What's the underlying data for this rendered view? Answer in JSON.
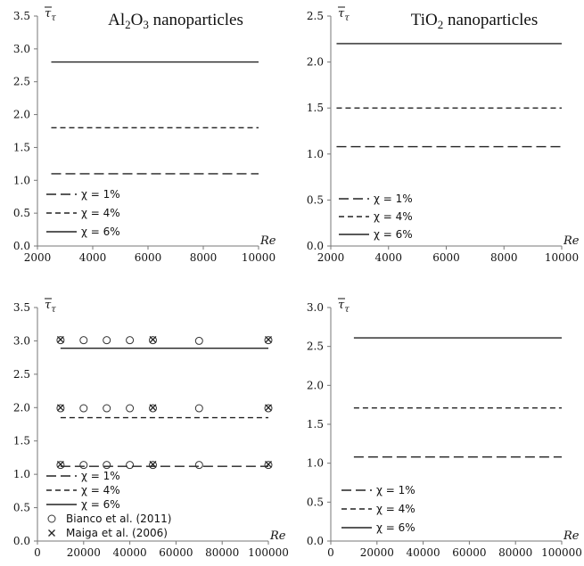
{
  "chart_data": [
    {
      "type": "line",
      "title": {
        "pre": "Al",
        "sub1": "2",
        "mid": "O",
        "sub2": "3",
        "post": " nanoparticles"
      },
      "ylabel": "τ̄τ",
      "xlabel": "Re",
      "xlim": [
        2000,
        10000
      ],
      "ylim": [
        0,
        3.5
      ],
      "xticks": [
        "2000",
        "4000",
        "6000",
        "8000",
        "10000"
      ],
      "yticks": [
        "0.0",
        "0.5",
        "1.0",
        "1.5",
        "2.0",
        "2.5",
        "3.0",
        "3.5"
      ],
      "xtick_values": [
        2000,
        4000,
        6000,
        8000,
        10000
      ],
      "ytick_values": [
        0,
        0.5,
        1.0,
        1.5,
        2.0,
        2.5,
        3.0,
        3.5
      ],
      "series": [
        {
          "name": "χ = 1%",
          "style": "longdash",
          "x": [
            2500,
            10000
          ],
          "y": [
            1.1,
            1.1
          ]
        },
        {
          "name": "χ = 4%",
          "style": "shortdash",
          "x": [
            2500,
            10000
          ],
          "y": [
            1.8,
            1.8
          ]
        },
        {
          "name": "χ = 6%",
          "style": "solid",
          "x": [
            2500,
            10000
          ],
          "y": [
            2.8,
            2.8
          ]
        }
      ],
      "markers": [],
      "legend_position": "bottom-left"
    },
    {
      "type": "line",
      "title": {
        "pre": "TiO",
        "sub1": "2",
        "mid": "",
        "sub2": "",
        "post": " nanoparticles"
      },
      "ylabel": "τ̄τ",
      "xlabel": "Re",
      "xlim": [
        2000,
        10000
      ],
      "ylim": [
        0,
        2.5
      ],
      "xticks": [
        "2000",
        "4000",
        "6000",
        "8000",
        "10000"
      ],
      "yticks": [
        "0.0",
        "0.5",
        "1.0",
        "1.5",
        "2.0",
        "2.5"
      ],
      "xtick_values": [
        2000,
        4000,
        6000,
        8000,
        10000
      ],
      "ytick_values": [
        0,
        0.5,
        1.0,
        1.5,
        2.0,
        2.5
      ],
      "series": [
        {
          "name": "χ = 1%",
          "style": "longdash",
          "x": [
            2200,
            10000
          ],
          "y": [
            1.08,
            1.08
          ]
        },
        {
          "name": "χ = 4%",
          "style": "shortdash",
          "x": [
            2200,
            10000
          ],
          "y": [
            1.5,
            1.5
          ]
        },
        {
          "name": "χ = 6%",
          "style": "solid",
          "x": [
            2200,
            10000
          ],
          "y": [
            2.2,
            2.2
          ]
        }
      ],
      "markers": [],
      "legend_position": "bottom-left"
    },
    {
      "type": "line",
      "title": null,
      "ylabel": "τ̄τ",
      "xlabel": "Re",
      "xlim": [
        0,
        100000
      ],
      "ylim": [
        0,
        3.5
      ],
      "xticks": [
        "0",
        "20000",
        "40000",
        "60000",
        "80000",
        "100000"
      ],
      "yticks": [
        "0.0",
        "0.5",
        "1.0",
        "1.5",
        "2.0",
        "2.5",
        "3.0",
        "3.5"
      ],
      "xtick_values": [
        0,
        20000,
        40000,
        60000,
        80000,
        100000
      ],
      "ytick_values": [
        0,
        0.5,
        1.0,
        1.5,
        2.0,
        2.5,
        3.0,
        3.5
      ],
      "series": [
        {
          "name": "χ = 1%",
          "style": "longdash",
          "x": [
            10000,
            100000
          ],
          "y": [
            1.12,
            1.12
          ]
        },
        {
          "name": "χ = 4%",
          "style": "shortdash",
          "x": [
            10000,
            100000
          ],
          "y": [
            1.85,
            1.85
          ]
        },
        {
          "name": "χ = 6%",
          "style": "solid",
          "x": [
            10000,
            100000
          ],
          "y": [
            2.89,
            2.89
          ]
        }
      ],
      "markers": [
        {
          "name": "Bianco et al. (2011)",
          "marker": "circle",
          "x": [
            10000,
            20000,
            30000,
            40000,
            50000,
            70000,
            100000,
            10000,
            20000,
            30000,
            40000,
            50000,
            70000,
            100000,
            10000,
            20000,
            30000,
            40000,
            50000,
            70000,
            100000
          ],
          "y": [
            1.14,
            1.14,
            1.14,
            1.14,
            1.14,
            1.14,
            1.14,
            1.99,
            1.99,
            1.99,
            1.99,
            1.99,
            1.99,
            1.99,
            3.01,
            3.01,
            3.01,
            3.01,
            3.01,
            3.0,
            3.01
          ]
        },
        {
          "name": "Maiga et al. (2006)",
          "marker": "cross",
          "x": [
            10000,
            50000,
            100000,
            10000,
            50000,
            100000,
            10000,
            50000,
            100000
          ],
          "y": [
            1.15,
            1.15,
            1.15,
            2.0,
            2.0,
            2.0,
            3.02,
            3.02,
            3.02
          ]
        }
      ],
      "legend_position": "bottom-left"
    },
    {
      "type": "line",
      "title": null,
      "ylabel": "τ̄τ",
      "xlabel": "Re",
      "xlim": [
        0,
        100000
      ],
      "ylim": [
        0,
        3.0
      ],
      "xticks": [
        "0",
        "20000",
        "40000",
        "60000",
        "80000",
        "100000"
      ],
      "yticks": [
        "0.0",
        "0.5",
        "1.0",
        "1.5",
        "2.0",
        "2.5",
        "3.0"
      ],
      "xtick_values": [
        0,
        20000,
        40000,
        60000,
        80000,
        100000
      ],
      "ytick_values": [
        0,
        0.5,
        1.0,
        1.5,
        2.0,
        2.5,
        3.0
      ],
      "series": [
        {
          "name": "χ = 1%",
          "style": "longdash",
          "x": [
            10000,
            100000
          ],
          "y": [
            1.08,
            1.08
          ]
        },
        {
          "name": "χ = 4%",
          "style": "shortdash",
          "x": [
            10000,
            100000
          ],
          "y": [
            1.71,
            1.71
          ]
        },
        {
          "name": "χ = 6%",
          "style": "solid",
          "x": [
            10000,
            100000
          ],
          "y": [
            2.61,
            2.61
          ]
        }
      ],
      "markers": [],
      "legend_position": "bottom-left"
    }
  ]
}
